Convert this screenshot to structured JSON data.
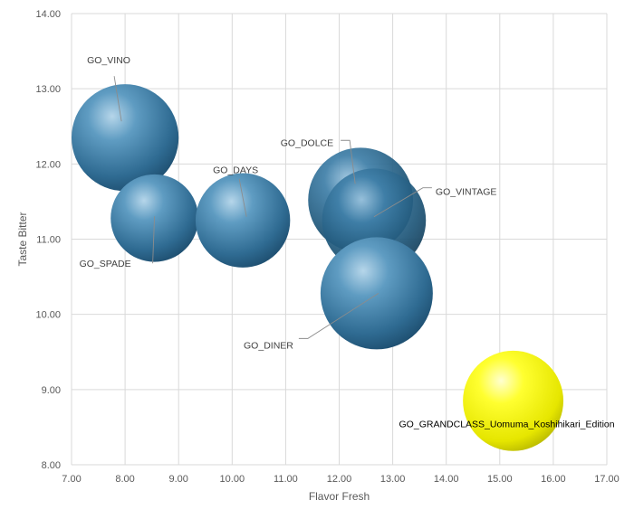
{
  "chart_data": {
    "type": "bubble",
    "xlabel": "Flavor Fresh",
    "ylabel": "Taste Bitter",
    "xlim": [
      7,
      17
    ],
    "ylim": [
      8,
      14
    ],
    "xticks": [
      "7.00",
      "8.00",
      "9.00",
      "10.00",
      "11.00",
      "12.00",
      "13.00",
      "14.00",
      "15.00",
      "16.00",
      "17.00"
    ],
    "yticks": [
      "8.00",
      "9.00",
      "10.00",
      "11.00",
      "12.00",
      "13.00",
      "14.00"
    ],
    "grid": true,
    "points": [
      {
        "label": "GO_VINO",
        "x": 8.0,
        "y": 12.35,
        "size": 1.0,
        "color": "#3f7ea6"
      },
      {
        "label": "GO_SPADE",
        "x": 8.55,
        "y": 11.28,
        "size": 0.67,
        "color": "#3f7ea6"
      },
      {
        "label": "GO_DAYS",
        "x": 10.2,
        "y": 11.25,
        "size": 0.78,
        "color": "#3f7ea6"
      },
      {
        "label": "GO_DOLCE",
        "x": 12.4,
        "y": 11.52,
        "size": 0.96,
        "color": "#2f6f96"
      },
      {
        "label": "GO_VINTAGE",
        "x": 12.65,
        "y": 11.25,
        "size": 0.94,
        "color": "#2f6f96"
      },
      {
        "label": "GO_DINER",
        "x": 12.7,
        "y": 10.28,
        "size": 1.1,
        "color": "#3f7ea6"
      },
      {
        "label": "GO_GRANDCLASS_Uomuma_Koshihikari_Edition",
        "x": 15.25,
        "y": 8.85,
        "size": 0.88,
        "color": "#f2f200"
      }
    ]
  }
}
